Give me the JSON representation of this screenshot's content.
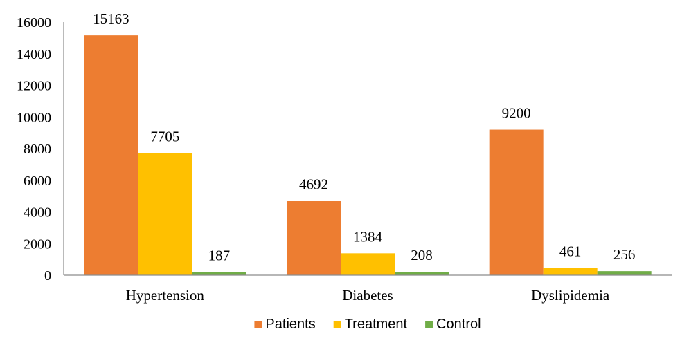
{
  "chart_data": {
    "type": "bar",
    "title": "",
    "xlabel": "",
    "ylabel": "",
    "categories": [
      "Hypertension",
      "Diabetes",
      "Dyslipidemia"
    ],
    "series": [
      {
        "name": "Patients",
        "color": "#ED7D31",
        "values": [
          15163,
          4692,
          9200
        ]
      },
      {
        "name": "Treatment",
        "color": "#FFC000",
        "values": [
          7705,
          1384,
          461
        ]
      },
      {
        "name": "Control",
        "color": "#70AD47",
        "values": [
          187,
          208,
          256
        ]
      }
    ],
    "ylim": [
      0,
      16000
    ],
    "yticks": [
      0,
      2000,
      4000,
      6000,
      8000,
      10000,
      12000,
      14000,
      16000
    ],
    "grid": false,
    "data_labels": true,
    "legend": "bottom-center"
  }
}
